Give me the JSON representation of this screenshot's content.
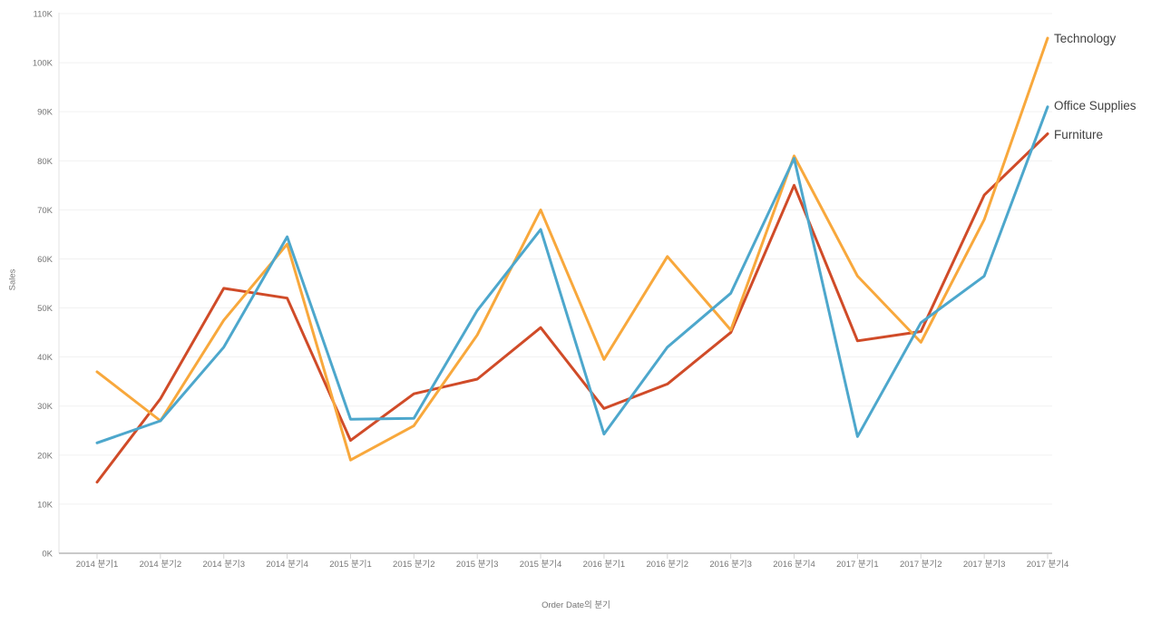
{
  "chart_data": {
    "type": "line",
    "title": "",
    "x_axis": {
      "title": "Order Date의 분기",
      "categories": [
        "2014 분기1",
        "2014 분기2",
        "2014 분기3",
        "2014 분기4",
        "2015 분기1",
        "2015 분기2",
        "2015 분기3",
        "2015 분기4",
        "2016 분기1",
        "2016 분기2",
        "2016 분기3",
        "2016 분기4",
        "2017 분기1",
        "2017 분기2",
        "2017 분기3",
        "2017 분기4"
      ]
    },
    "y_axis": {
      "title": "Sales",
      "tick_labels": [
        "0K",
        "10K",
        "20K",
        "30K",
        "40K",
        "50K",
        "60K",
        "70K",
        "80K",
        "90K",
        "100K",
        "110K"
      ],
      "tick_values_k": [
        0,
        10,
        20,
        30,
        40,
        50,
        60,
        70,
        80,
        90,
        100,
        110
      ],
      "range_k": [
        0,
        110
      ]
    },
    "grid": "horizontal",
    "legend_position": "line-end-labels-right",
    "series": [
      {
        "name": "Technology",
        "color": "#F8A83C",
        "values_k": [
          37,
          27,
          47.5,
          63,
          19,
          26,
          44.5,
          70,
          39.5,
          60.5,
          45.5,
          81,
          56.5,
          43,
          68,
          105
        ]
      },
      {
        "name": "Office Supplies",
        "color": "#4DA7CC",
        "values_k": [
          22.5,
          27,
          42,
          64.5,
          27.3,
          27.5,
          49.5,
          66,
          24.3,
          42,
          53,
          80.5,
          23.8,
          47,
          56.5,
          91
        ]
      },
      {
        "name": "Furniture",
        "color": "#D04B28",
        "values_k": [
          14.5,
          31.5,
          54,
          52,
          23,
          32.5,
          35.5,
          46,
          29.5,
          34.5,
          45,
          75,
          43.3,
          45.2,
          73,
          85.5
        ]
      }
    ],
    "style": {
      "gridline_color": "#f1f1f1",
      "axis_line_color": "#c9c9c9",
      "tick_mark_color": "#d4d4d4",
      "tick_label_color": "#757575",
      "series_label_color": "#414141",
      "background": "#ffffff"
    }
  }
}
